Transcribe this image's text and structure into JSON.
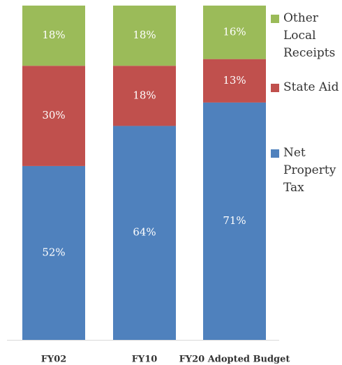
{
  "chart_data": {
    "type": "stacked_bar",
    "categories": [
      "FY02",
      "FY10",
      "FY20 Adopted Budget"
    ],
    "series": [
      {
        "name": "Net Property Tax",
        "color": "#4f81bd",
        "values": [
          52,
          64,
          71
        ],
        "value_labels": [
          "52%",
          "64%",
          "71%"
        ]
      },
      {
        "name": "State Aid",
        "color": "#c0504d",
        "values": [
          30,
          18,
          13
        ],
        "value_labels": [
          "30%",
          "18%",
          "13%"
        ]
      },
      {
        "name": "Other Local Receipts",
        "color": "#9bbb59",
        "values": [
          18,
          18,
          16
        ],
        "value_labels": [
          "18%",
          "18%",
          "16%"
        ]
      }
    ],
    "ylim": [
      0,
      100
    ],
    "legend": "right"
  }
}
